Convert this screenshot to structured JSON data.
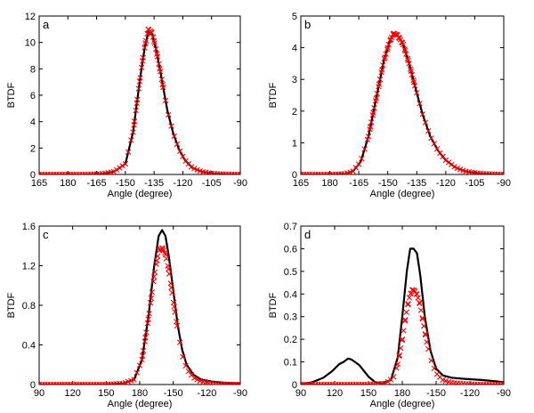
{
  "chart_data": [
    {
      "type": "line",
      "panel_label": "a",
      "xlabel": "Angle (degree)",
      "ylabel": "BTDF",
      "xticks": [
        "165",
        "180",
        "-165",
        "-150",
        "-135",
        "-120",
        "-105",
        "-90"
      ],
      "xlim": [
        165,
        270
      ],
      "ylim": [
        0,
        12
      ],
      "yticks": [
        0,
        2,
        4,
        6,
        8,
        10,
        12
      ],
      "ytick_labels": [
        "0",
        "2",
        "4",
        "6",
        "8",
        "10",
        "12"
      ],
      "grid": false,
      "series": [
        {
          "style": "solid-line",
          "color": "#000000",
          "x": [
            165,
            190,
            198,
            204,
            210,
            214,
            216,
            218,
            220,
            222,
            224,
            226,
            228,
            230,
            232,
            235,
            238,
            241,
            245,
            250,
            255,
            260,
            270
          ],
          "y": [
            0,
            0,
            0.05,
            0.2,
            0.8,
            3.2,
            5.4,
            7.6,
            9.5,
            10.8,
            10.6,
            9.5,
            8.0,
            6.4,
            4.8,
            3.1,
            1.9,
            1.1,
            0.5,
            0.2,
            0.08,
            0.03,
            0
          ]
        },
        {
          "style": "x-markers",
          "color": "#ff0000",
          "x": [
            165,
            190,
            198,
            204,
            210,
            214,
            216,
            218,
            220,
            222,
            224,
            226,
            228,
            230,
            232,
            235,
            238,
            241,
            245,
            250,
            255,
            260,
            270
          ],
          "y": [
            0,
            0,
            0.05,
            0.2,
            0.8,
            3.2,
            5.4,
            7.6,
            9.6,
            11.0,
            10.7,
            9.5,
            8.0,
            6.4,
            4.8,
            3.1,
            1.9,
            1.1,
            0.5,
            0.2,
            0.08,
            0.03,
            0
          ]
        }
      ]
    },
    {
      "type": "line",
      "panel_label": "b",
      "xlabel": "Angle (degree)",
      "ylabel": "BTDF",
      "xticks": [
        "165",
        "180",
        "-165",
        "-150",
        "-135",
        "-120",
        "-105",
        "-90"
      ],
      "xlim": [
        165,
        270
      ],
      "ylim": [
        0,
        5
      ],
      "yticks": [
        0,
        1,
        2,
        3,
        4,
        5
      ],
      "ytick_labels": [
        "0",
        "1",
        "2",
        "3",
        "4",
        "5"
      ],
      "grid": false,
      "series": [
        {
          "style": "solid-line",
          "color": "#000000",
          "x": [
            165,
            180,
            188,
            192,
            196,
            200,
            204,
            208,
            211,
            213,
            215,
            218,
            221,
            224,
            228,
            232,
            236,
            240,
            245,
            250,
            255,
            260,
            270
          ],
          "y": [
            0,
            0,
            0.02,
            0.1,
            0.4,
            1.2,
            2.4,
            3.6,
            4.2,
            4.45,
            4.4,
            4.1,
            3.5,
            2.8,
            1.9,
            1.2,
            0.75,
            0.45,
            0.22,
            0.1,
            0.05,
            0.02,
            0
          ]
        },
        {
          "style": "x-markers",
          "color": "#ff0000",
          "x": [
            165,
            180,
            188,
            192,
            196,
            200,
            204,
            208,
            211,
            213,
            215,
            218,
            221,
            224,
            228,
            232,
            236,
            240,
            245,
            250,
            255,
            260,
            270
          ],
          "y": [
            0,
            0,
            0.02,
            0.1,
            0.4,
            1.2,
            2.4,
            3.6,
            4.2,
            4.45,
            4.4,
            4.1,
            3.5,
            2.8,
            1.9,
            1.2,
            0.75,
            0.45,
            0.22,
            0.1,
            0.05,
            0.02,
            0
          ]
        }
      ]
    },
    {
      "type": "line",
      "panel_label": "c",
      "xlabel": "Angle (degree)",
      "ylabel": "BTDF",
      "xticks": [
        "90",
        "120",
        "150",
        "180",
        "-150",
        "-120",
        "-90"
      ],
      "xlim": [
        90,
        270
      ],
      "ylim": [
        0,
        1.6
      ],
      "yticks": [
        0,
        0.4,
        0.8,
        1.2,
        1.6
      ],
      "ytick_labels": [
        "0",
        "0.4",
        "0.8",
        "1.2",
        "1.6"
      ],
      "grid": false,
      "series": [
        {
          "style": "solid-line",
          "color": "#000000",
          "x": [
            90,
            150,
            165,
            175,
            182,
            188,
            193,
            197,
            200,
            203,
            206,
            210,
            214,
            218,
            222,
            228,
            235,
            245,
            255,
            270
          ],
          "y": [
            0,
            0,
            0.01,
            0.05,
            0.25,
            0.7,
            1.2,
            1.5,
            1.56,
            1.5,
            1.3,
            0.95,
            0.6,
            0.35,
            0.2,
            0.1,
            0.05,
            0.03,
            0.02,
            0.01
          ]
        },
        {
          "style": "x-markers",
          "color": "#ff0000",
          "x": [
            90,
            150,
            165,
            175,
            182,
            188,
            193,
            197,
            200,
            203,
            206,
            210,
            214,
            218,
            222,
            228,
            235,
            245,
            255,
            270
          ],
          "y": [
            0,
            0,
            0.01,
            0.05,
            0.25,
            0.68,
            1.1,
            1.35,
            1.38,
            1.32,
            1.15,
            0.85,
            0.55,
            0.3,
            0.16,
            0.07,
            0.03,
            0.01,
            0,
            0
          ]
        }
      ]
    },
    {
      "type": "line",
      "panel_label": "d",
      "xlabel": "Angle (degree)",
      "ylabel": "BTDF",
      "xticks": [
        "90",
        "120",
        "150",
        "180",
        "-150",
        "-120",
        "-90"
      ],
      "xlim": [
        90,
        270
      ],
      "ylim": [
        0,
        0.7
      ],
      "yticks": [
        0,
        0.1,
        0.2,
        0.3,
        0.4,
        0.5,
        0.6,
        0.7
      ],
      "ytick_labels": [
        "0",
        "0.1",
        "0.2",
        "0.3",
        "0.4",
        "0.5",
        "0.6",
        "0.7"
      ],
      "grid": false,
      "series": [
        {
          "style": "solid-line",
          "color": "#000000",
          "x": [
            90,
            100,
            110,
            118,
            124,
            128,
            132,
            135,
            138,
            142,
            146,
            150,
            156,
            162,
            170,
            176,
            180,
            184,
            187,
            190,
            193,
            196,
            200,
            205,
            210,
            216,
            224,
            235,
            250,
            262,
            270
          ],
          "y": [
            0,
            0.01,
            0.03,
            0.06,
            0.09,
            0.1,
            0.115,
            0.11,
            0.1,
            0.085,
            0.06,
            0.035,
            0.01,
            0.005,
            0.02,
            0.12,
            0.3,
            0.5,
            0.6,
            0.6,
            0.58,
            0.48,
            0.3,
            0.15,
            0.07,
            0.04,
            0.03,
            0.025,
            0.02,
            0.015,
            0.01
          ]
        },
        {
          "style": "x-markers",
          "color": "#ff0000",
          "x": [
            90,
            150,
            165,
            172,
            176,
            180,
            183,
            186,
            189,
            192,
            195,
            198,
            202,
            206,
            210,
            216,
            222,
            230,
            245,
            270
          ],
          "y": [
            0,
            0,
            0.005,
            0.03,
            0.09,
            0.2,
            0.3,
            0.38,
            0.42,
            0.41,
            0.37,
            0.29,
            0.18,
            0.1,
            0.05,
            0.02,
            0.01,
            0.005,
            0,
            0
          ]
        }
      ]
    }
  ]
}
